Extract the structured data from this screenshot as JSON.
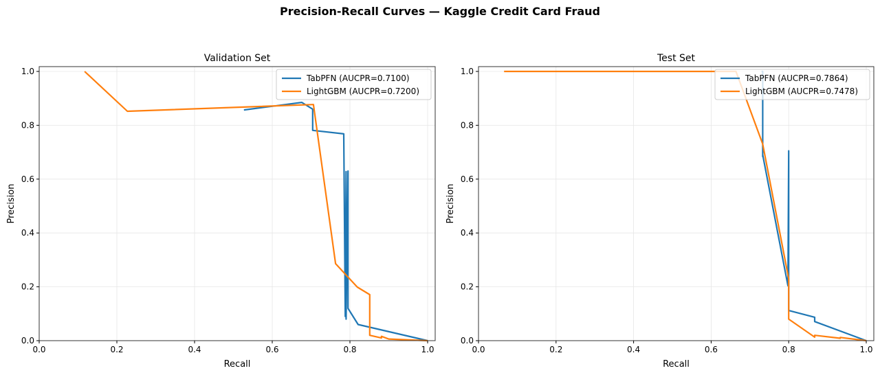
{
  "figure": {
    "title": "Precision-Recall Curves — Kaggle Credit Card Fraud"
  },
  "colors": {
    "tabpfn": "#1f77b4",
    "lightgbm": "#ff7f0e",
    "grid": "#e6e6e6",
    "axes": "#333333"
  },
  "chart_data": [
    {
      "type": "line",
      "title": "Validation Set",
      "xlabel": "Recall",
      "ylabel": "Precision",
      "xlim": [
        0.0,
        1.02
      ],
      "ylim": [
        0.0,
        1.02
      ],
      "xticks": [
        "0.0",
        "0.2",
        "0.4",
        "0.6",
        "0.8",
        "1.0"
      ],
      "yticks": [
        "0.0",
        "0.2",
        "0.4",
        "0.6",
        "0.8",
        "1.0"
      ],
      "grid": true,
      "legend_position": "upper right",
      "series": [
        {
          "name": "TabPFN (AUCPR=0.7100)",
          "color": "#1f77b4",
          "x": [
            0.527,
            0.676,
            0.704,
            0.704,
            0.784,
            0.788,
            0.79,
            0.79,
            0.795,
            0.795,
            0.795,
            0.821,
            1.0
          ],
          "y": [
            0.857,
            0.885,
            0.86,
            0.781,
            0.768,
            0.09,
            0.628,
            0.08,
            0.63,
            0.12,
            0.12,
            0.06,
            0.0
          ]
        },
        {
          "name": "LightGBM (AUCPR=0.7200)",
          "color": "#ff7f0e",
          "x": [
            0.117,
            0.227,
            0.706,
            0.763,
            0.819,
            0.851,
            0.851,
            0.881,
            0.881,
            0.9,
            1.0
          ],
          "y": [
            1.0,
            0.852,
            0.877,
            0.286,
            0.199,
            0.171,
            0.02,
            0.01,
            0.016,
            0.006,
            0.0
          ]
        }
      ]
    },
    {
      "type": "line",
      "title": "Test Set",
      "xlabel": "Recall",
      "ylabel": "Precision",
      "xlim": [
        0.0,
        1.02
      ],
      "ylim": [
        0.0,
        1.02
      ],
      "xticks": [
        "0.0",
        "0.2",
        "0.4",
        "0.6",
        "0.8",
        "1.0"
      ],
      "yticks": [
        "0.0",
        "0.2",
        "0.4",
        "0.6",
        "0.8",
        "1.0"
      ],
      "grid": true,
      "legend_position": "upper right",
      "series": [
        {
          "name": "TabPFN (AUCPR=0.7864)",
          "color": "#1f77b4",
          "x": [
            0.73,
            0.733,
            0.733,
            0.733,
            0.798,
            0.8,
            0.8,
            0.8,
            0.867,
            0.867,
            0.867,
            1.0
          ],
          "y": [
            1.0,
            1.0,
            0.684,
            0.69,
            0.204,
            0.705,
            0.112,
            0.112,
            0.087,
            0.071,
            0.071,
            0.0
          ]
        },
        {
          "name": "LightGBM (AUCPR=0.7478)",
          "color": "#ff7f0e",
          "x": [
            0.066,
            0.664,
            0.733,
            0.8,
            0.8,
            0.867,
            0.867,
            0.933,
            0.933,
            1.0
          ],
          "y": [
            1.0,
            1.0,
            0.73,
            0.23,
            0.08,
            0.013,
            0.02,
            0.009,
            0.012,
            0.0
          ]
        }
      ]
    }
  ]
}
